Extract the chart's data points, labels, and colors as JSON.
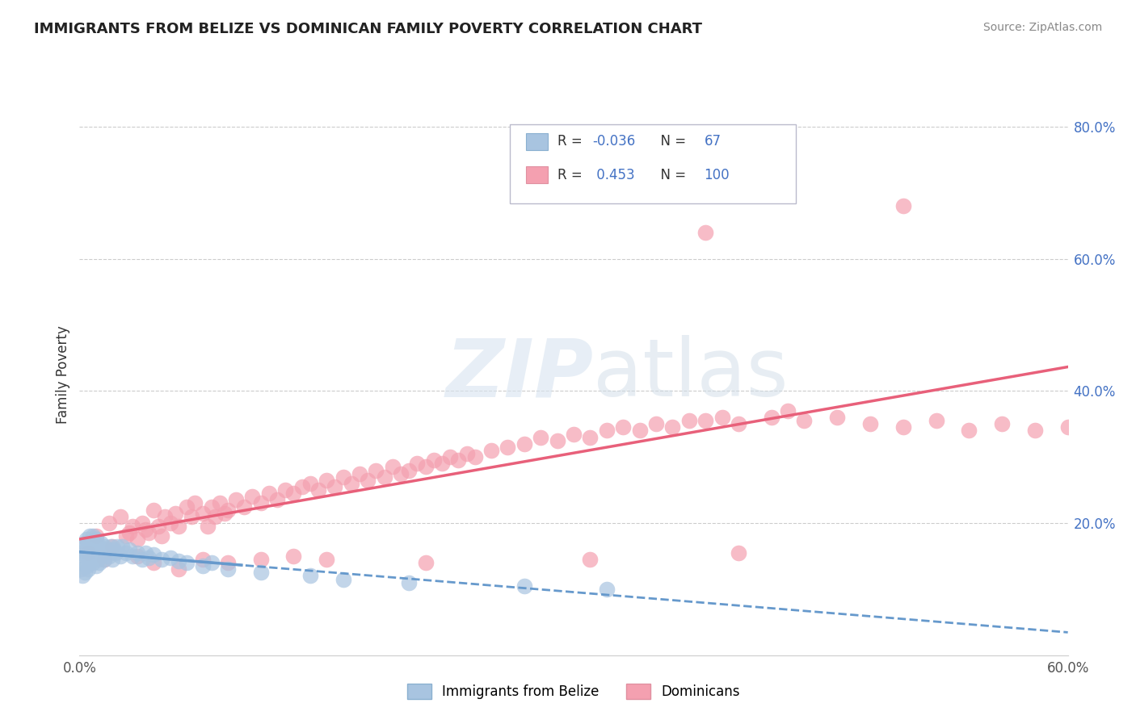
{
  "title": "IMMIGRANTS FROM BELIZE VS DOMINICAN FAMILY POVERTY CORRELATION CHART",
  "source": "Source: ZipAtlas.com",
  "ylabel": "Family Poverty",
  "xlim": [
    0.0,
    0.6
  ],
  "ylim": [
    0.0,
    0.85
  ],
  "belize_R": -0.036,
  "belize_N": 67,
  "dominican_R": 0.453,
  "dominican_N": 100,
  "belize_color": "#a8c4e0",
  "dominican_color": "#f4a0b0",
  "belize_line_color": "#6699cc",
  "dominican_line_color": "#e8607a",
  "legend_belize_label": "Immigrants from Belize",
  "legend_dominican_label": "Dominicans",
  "watermark_zip": "ZIP",
  "watermark_atlas": "atlas",
  "belize_scatter_x": [
    0.001,
    0.001,
    0.002,
    0.002,
    0.002,
    0.003,
    0.003,
    0.003,
    0.004,
    0.004,
    0.004,
    0.005,
    0.005,
    0.005,
    0.006,
    0.006,
    0.006,
    0.007,
    0.007,
    0.008,
    0.008,
    0.008,
    0.009,
    0.009,
    0.01,
    0.01,
    0.01,
    0.011,
    0.011,
    0.012,
    0.012,
    0.013,
    0.013,
    0.014,
    0.015,
    0.015,
    0.016,
    0.017,
    0.018,
    0.019,
    0.02,
    0.021,
    0.022,
    0.023,
    0.025,
    0.026,
    0.028,
    0.03,
    0.032,
    0.035,
    0.038,
    0.04,
    0.042,
    0.045,
    0.05,
    0.055,
    0.06,
    0.065,
    0.075,
    0.08,
    0.09,
    0.11,
    0.14,
    0.16,
    0.2,
    0.27,
    0.32
  ],
  "belize_scatter_y": [
    0.13,
    0.155,
    0.12,
    0.145,
    0.165,
    0.125,
    0.15,
    0.17,
    0.135,
    0.155,
    0.175,
    0.13,
    0.15,
    0.17,
    0.14,
    0.16,
    0.18,
    0.145,
    0.165,
    0.14,
    0.16,
    0.18,
    0.15,
    0.17,
    0.135,
    0.155,
    0.175,
    0.145,
    0.165,
    0.14,
    0.165,
    0.15,
    0.17,
    0.16,
    0.145,
    0.165,
    0.155,
    0.16,
    0.15,
    0.165,
    0.145,
    0.16,
    0.155,
    0.165,
    0.15,
    0.165,
    0.155,
    0.16,
    0.15,
    0.155,
    0.145,
    0.155,
    0.148,
    0.152,
    0.145,
    0.148,
    0.142,
    0.14,
    0.135,
    0.14,
    0.13,
    0.125,
    0.12,
    0.115,
    0.11,
    0.105,
    0.1
  ],
  "dominican_scatter_x": [
    0.005,
    0.01,
    0.015,
    0.018,
    0.02,
    0.025,
    0.028,
    0.03,
    0.032,
    0.035,
    0.038,
    0.04,
    0.042,
    0.045,
    0.048,
    0.05,
    0.052,
    0.055,
    0.058,
    0.06,
    0.065,
    0.068,
    0.07,
    0.075,
    0.078,
    0.08,
    0.082,
    0.085,
    0.088,
    0.09,
    0.095,
    0.1,
    0.105,
    0.11,
    0.115,
    0.12,
    0.125,
    0.13,
    0.135,
    0.14,
    0.145,
    0.15,
    0.155,
    0.16,
    0.165,
    0.17,
    0.175,
    0.18,
    0.185,
    0.19,
    0.195,
    0.2,
    0.205,
    0.21,
    0.215,
    0.22,
    0.225,
    0.23,
    0.235,
    0.24,
    0.25,
    0.26,
    0.27,
    0.28,
    0.29,
    0.3,
    0.31,
    0.32,
    0.33,
    0.34,
    0.35,
    0.36,
    0.37,
    0.38,
    0.39,
    0.4,
    0.42,
    0.44,
    0.46,
    0.48,
    0.5,
    0.52,
    0.54,
    0.56,
    0.58,
    0.6,
    0.035,
    0.045,
    0.06,
    0.075,
    0.09,
    0.11,
    0.13,
    0.15,
    0.21,
    0.31,
    0.4,
    0.43,
    0.38,
    0.5
  ],
  "dominican_scatter_y": [
    0.155,
    0.18,
    0.145,
    0.2,
    0.165,
    0.21,
    0.18,
    0.185,
    0.195,
    0.175,
    0.2,
    0.19,
    0.185,
    0.22,
    0.195,
    0.18,
    0.21,
    0.2,
    0.215,
    0.195,
    0.225,
    0.21,
    0.23,
    0.215,
    0.195,
    0.225,
    0.21,
    0.23,
    0.215,
    0.22,
    0.235,
    0.225,
    0.24,
    0.23,
    0.245,
    0.235,
    0.25,
    0.245,
    0.255,
    0.26,
    0.25,
    0.265,
    0.255,
    0.27,
    0.26,
    0.275,
    0.265,
    0.28,
    0.27,
    0.285,
    0.275,
    0.28,
    0.29,
    0.285,
    0.295,
    0.29,
    0.3,
    0.295,
    0.305,
    0.3,
    0.31,
    0.315,
    0.32,
    0.33,
    0.325,
    0.335,
    0.33,
    0.34,
    0.345,
    0.34,
    0.35,
    0.345,
    0.355,
    0.355,
    0.36,
    0.35,
    0.36,
    0.355,
    0.36,
    0.35,
    0.345,
    0.355,
    0.34,
    0.35,
    0.34,
    0.345,
    0.15,
    0.14,
    0.13,
    0.145,
    0.14,
    0.145,
    0.15,
    0.145,
    0.14,
    0.145,
    0.155,
    0.37,
    0.64,
    0.68
  ]
}
